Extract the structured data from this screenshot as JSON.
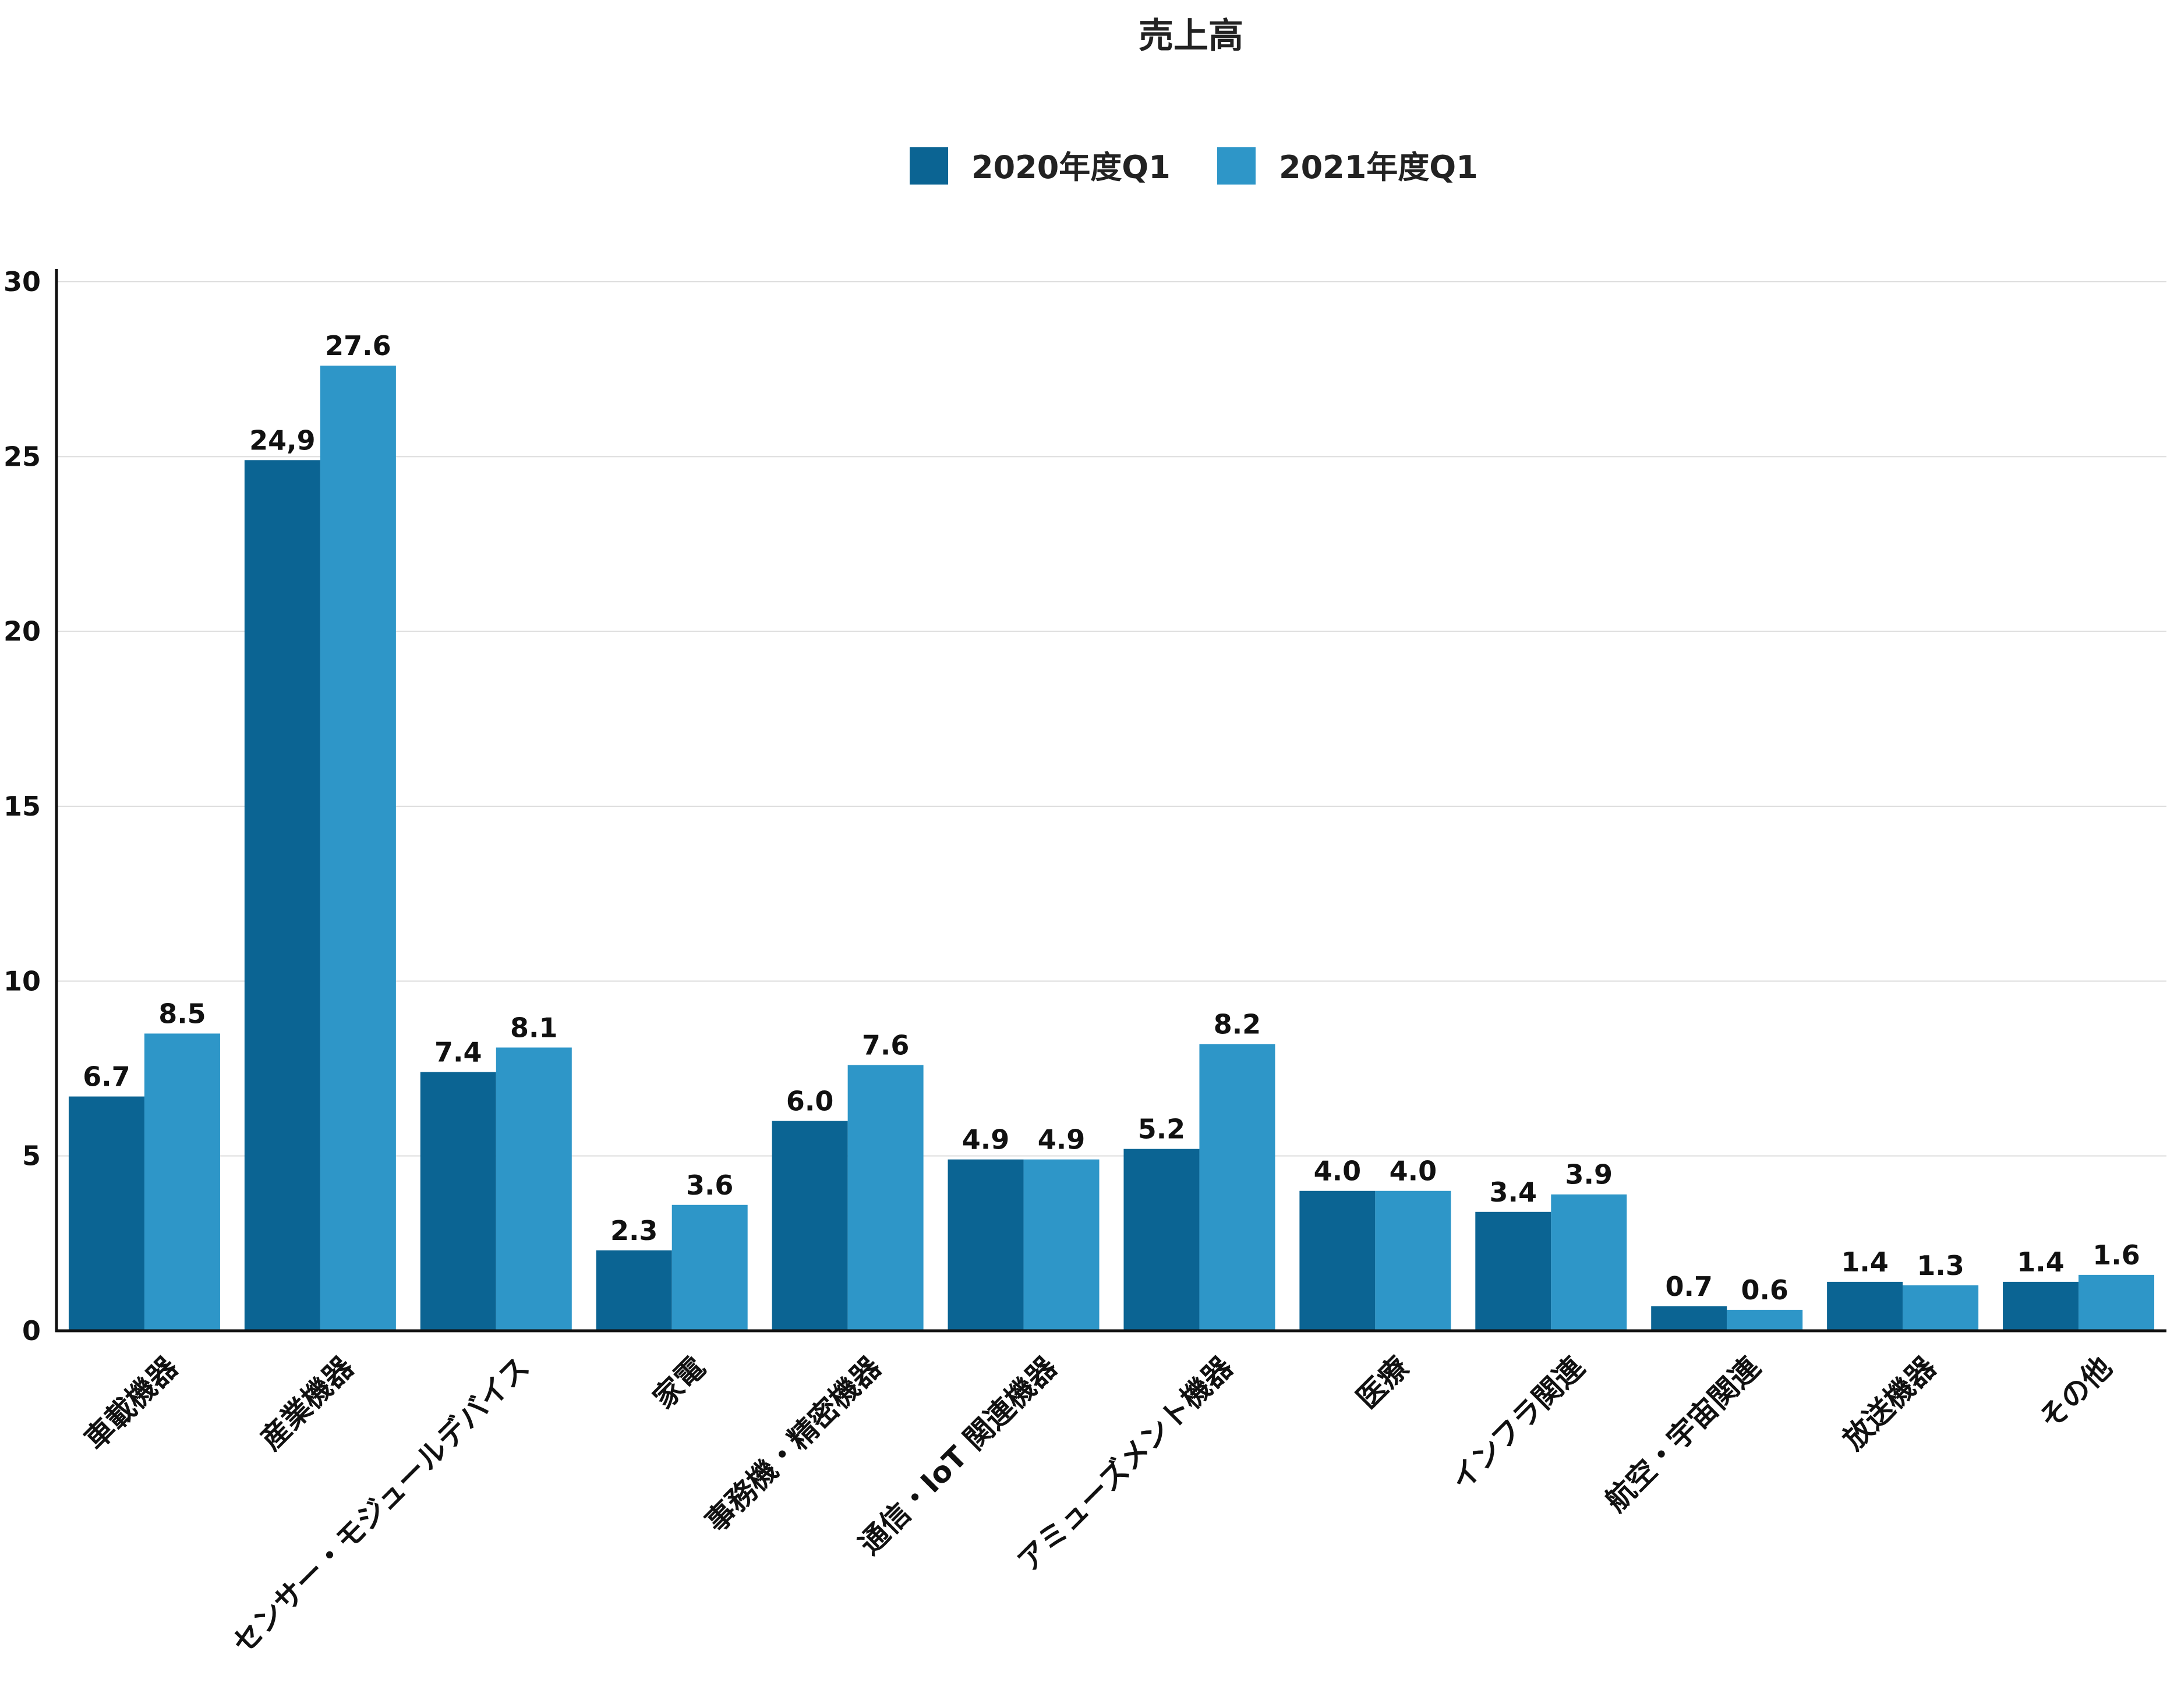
{
  "chart_data": {
    "type": "bar",
    "title": "売上高",
    "xlabel": "",
    "ylabel": "",
    "ylim": [
      0,
      30
    ],
    "yticks": [
      "0",
      "5",
      "10",
      "15",
      "20",
      "25",
      "30"
    ],
    "grid": true,
    "legend_position": "top-center",
    "categories": [
      "車載機器",
      "産業機器",
      "センサー・モジュールデバイス",
      "家電",
      "事務機・精密機器",
      "通信・IoT 関連機器",
      "アミューズメント機器",
      "医療",
      "インフラ関連",
      "航空・宇宙関連",
      "放送機器",
      "その他"
    ],
    "series": [
      {
        "name": "2020年度Q1",
        "color": "#0b6493",
        "values": [
          6.7,
          24.9,
          7.4,
          2.3,
          6.0,
          4.9,
          5.2,
          4.0,
          3.4,
          0.7,
          1.4,
          1.4
        ],
        "labels": [
          "6.7",
          "24,9",
          "7.4",
          "2.3",
          "6.0",
          "4.9",
          "5.2",
          "4.0",
          "3.4",
          "0.7",
          "1.4",
          "1.4"
        ]
      },
      {
        "name": "2021年度Q1",
        "color": "#2e96c8",
        "values": [
          8.5,
          27.6,
          8.1,
          3.6,
          7.6,
          4.9,
          8.2,
          4.0,
          3.9,
          0.6,
          1.3,
          1.6
        ],
        "labels": [
          "8.5",
          "27.6",
          "8.1",
          "3.6",
          "7.6",
          "4.9",
          "8.2",
          "4.0",
          "3.9",
          "0.6",
          "1.3",
          "1.6"
        ]
      }
    ]
  }
}
